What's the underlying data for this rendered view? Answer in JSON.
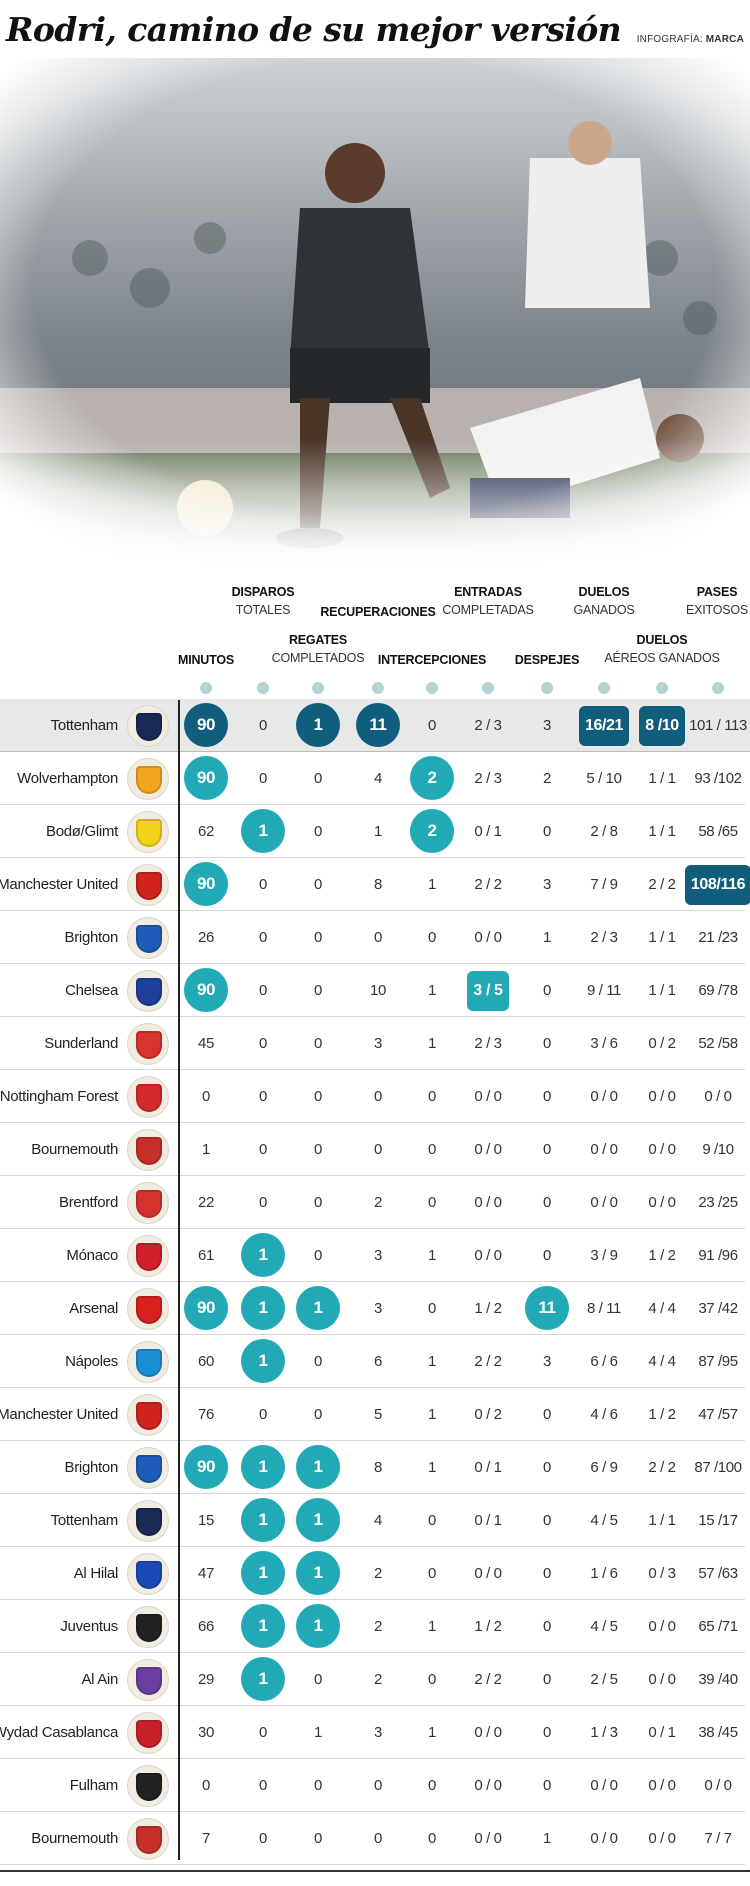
{
  "title": "Rodri, camino de su mejor versión",
  "credit_prefix": "INFOGRAFÍA:",
  "credit_name": "MARCA",
  "colors": {
    "teal": "#21aab6",
    "navy": "#115e7c",
    "dot": "#b5d2d2",
    "highlight_row": "#e8e8e8"
  },
  "headers": [
    {
      "key": "min",
      "bold": "MINUTOS",
      "light": ""
    },
    {
      "key": "shots",
      "bold": "DISPAROS",
      "light": "TOTALES"
    },
    {
      "key": "dribbles",
      "bold": "REGATES",
      "light": "COMPLETADOS"
    },
    {
      "key": "recoveries",
      "bold": "RECUPERACIONES",
      "light": ""
    },
    {
      "key": "interceptions",
      "bold": "INTERCEPCIONES",
      "light": ""
    },
    {
      "key": "tackles",
      "bold": "ENTRADAS",
      "light": "COMPLETADAS"
    },
    {
      "key": "clearances",
      "bold": "DESPEJES",
      "light": ""
    },
    {
      "key": "duels",
      "bold": "DUELOS",
      "light": "GANADOS"
    },
    {
      "key": "aerial",
      "bold": "DUELOS",
      "light": "AÉREOS GANADOS"
    },
    {
      "key": "passes",
      "bold": "PASES",
      "light": "EXITOSOS"
    }
  ],
  "rows": [
    {
      "team": "Tottenham",
      "crest": "tottenham-crest",
      "crest_color": "#1b2a55",
      "highlight": true,
      "cells": [
        {
          "v": "90",
          "hl": "navy"
        },
        {
          "v": "0"
        },
        {
          "v": "1",
          "hl": "navy"
        },
        {
          "v": "11",
          "hl": "navy"
        },
        {
          "v": "0"
        },
        {
          "v": "2 / 3"
        },
        {
          "v": "3"
        },
        {
          "v": "16/21",
          "hl": "navy"
        },
        {
          "v": "8 /10",
          "hl": "navy"
        },
        {
          "v": "101 / 113"
        }
      ]
    },
    {
      "team": "Wolverhampton",
      "crest": "wolverhampton-crest",
      "crest_color": "#f2a51f",
      "cells": [
        {
          "v": "90",
          "hl": "teal"
        },
        {
          "v": "0"
        },
        {
          "v": "0"
        },
        {
          "v": "4"
        },
        {
          "v": "2",
          "hl": "teal"
        },
        {
          "v": "2 / 3"
        },
        {
          "v": "2"
        },
        {
          "v": "5 / 10"
        },
        {
          "v": "1 / 1"
        },
        {
          "v": "93 /102"
        }
      ]
    },
    {
      "team": "Bodø/Glimt",
      "crest": "bodo-glimt-crest",
      "crest_color": "#f2d21a",
      "cells": [
        {
          "v": "62"
        },
        {
          "v": "1",
          "hl": "teal"
        },
        {
          "v": "0"
        },
        {
          "v": "1"
        },
        {
          "v": "2",
          "hl": "teal"
        },
        {
          "v": "0 / 1"
        },
        {
          "v": "0"
        },
        {
          "v": "2 / 8"
        },
        {
          "v": "1 / 1"
        },
        {
          "v": "58 /65"
        }
      ]
    },
    {
      "team": "Manchester United",
      "crest": "manchester-united-crest",
      "crest_color": "#d0231d",
      "cells": [
        {
          "v": "90",
          "hl": "teal"
        },
        {
          "v": "0"
        },
        {
          "v": "0"
        },
        {
          "v": "8"
        },
        {
          "v": "1"
        },
        {
          "v": "2 / 2"
        },
        {
          "v": "3"
        },
        {
          "v": "7 / 9"
        },
        {
          "v": "2 / 2"
        },
        {
          "v": "108/116",
          "hl": "navy"
        }
      ]
    },
    {
      "team": "Brighton",
      "crest": "brighton-crest",
      "crest_color": "#1d5cb8",
      "cells": [
        {
          "v": "26"
        },
        {
          "v": "0"
        },
        {
          "v": "0"
        },
        {
          "v": "0"
        },
        {
          "v": "0"
        },
        {
          "v": "0 / 0"
        },
        {
          "v": "1"
        },
        {
          "v": "2 / 3"
        },
        {
          "v": "1 / 1"
        },
        {
          "v": "21 /23"
        }
      ]
    },
    {
      "team": "Chelsea",
      "crest": "chelsea-crest",
      "crest_color": "#1f3f9a",
      "cells": [
        {
          "v": "90",
          "hl": "teal"
        },
        {
          "v": "0"
        },
        {
          "v": "0"
        },
        {
          "v": "10"
        },
        {
          "v": "1"
        },
        {
          "v": "3 / 5",
          "hl": "teal"
        },
        {
          "v": "0"
        },
        {
          "v": "9 / 11"
        },
        {
          "v": "1 / 1"
        },
        {
          "v": "69 /78"
        }
      ]
    },
    {
      "team": "Sunderland",
      "crest": "sunderland-crest",
      "crest_color": "#d8332c",
      "cells": [
        {
          "v": "45"
        },
        {
          "v": "0"
        },
        {
          "v": "0"
        },
        {
          "v": "3"
        },
        {
          "v": "1"
        },
        {
          "v": "2 / 3"
        },
        {
          "v": "0"
        },
        {
          "v": "3 / 6"
        },
        {
          "v": "0 / 2"
        },
        {
          "v": "52 /58"
        }
      ]
    },
    {
      "team": "Nottingham Forest",
      "crest": "nottingham-forest-crest",
      "crest_color": "#d62a2a",
      "cells": [
        {
          "v": "0"
        },
        {
          "v": "0"
        },
        {
          "v": "0"
        },
        {
          "v": "0"
        },
        {
          "v": "0"
        },
        {
          "v": "0 / 0"
        },
        {
          "v": "0"
        },
        {
          "v": "0 / 0"
        },
        {
          "v": "0 / 0"
        },
        {
          "v": "0 / 0"
        }
      ]
    },
    {
      "team": "Bournemouth",
      "crest": "bournemouth-crest",
      "crest_color": "#c72f2b",
      "cells": [
        {
          "v": "1"
        },
        {
          "v": "0"
        },
        {
          "v": "0"
        },
        {
          "v": "0"
        },
        {
          "v": "0"
        },
        {
          "v": "0 / 0"
        },
        {
          "v": "0"
        },
        {
          "v": "0 / 0"
        },
        {
          "v": "0 / 0"
        },
        {
          "v": "9 /10"
        }
      ]
    },
    {
      "team": "Brentford",
      "crest": "brentford-crest",
      "crest_color": "#d5322c",
      "cells": [
        {
          "v": "22"
        },
        {
          "v": "0"
        },
        {
          "v": "0"
        },
        {
          "v": "2"
        },
        {
          "v": "0"
        },
        {
          "v": "0 / 0"
        },
        {
          "v": "0"
        },
        {
          "v": "0 / 0"
        },
        {
          "v": "0 / 0"
        },
        {
          "v": "23 /25"
        }
      ]
    },
    {
      "team": "Mónaco",
      "crest": "monaco-crest",
      "crest_color": "#d2202a",
      "cells": [
        {
          "v": "61"
        },
        {
          "v": "1",
          "hl": "teal"
        },
        {
          "v": "0"
        },
        {
          "v": "3"
        },
        {
          "v": "1"
        },
        {
          "v": "0 / 0"
        },
        {
          "v": "0"
        },
        {
          "v": "3 / 9"
        },
        {
          "v": "1 / 2"
        },
        {
          "v": "91 /96"
        }
      ]
    },
    {
      "team": "Arsenal",
      "crest": "arsenal-crest",
      "crest_color": "#d8201f",
      "cells": [
        {
          "v": "90",
          "hl": "teal"
        },
        {
          "v": "1",
          "hl": "teal"
        },
        {
          "v": "1",
          "hl": "teal"
        },
        {
          "v": "3"
        },
        {
          "v": "0"
        },
        {
          "v": "1 / 2"
        },
        {
          "v": "11",
          "hl": "teal"
        },
        {
          "v": "8 / 11"
        },
        {
          "v": "4 / 4"
        },
        {
          "v": "37 /42"
        }
      ]
    },
    {
      "team": "Nápoles",
      "crest": "napoles-crest",
      "crest_color": "#1a8fd6",
      "cells": [
        {
          "v": "60"
        },
        {
          "v": "1",
          "hl": "teal"
        },
        {
          "v": "0"
        },
        {
          "v": "6"
        },
        {
          "v": "1"
        },
        {
          "v": "2 / 2"
        },
        {
          "v": "3"
        },
        {
          "v": "6 / 6"
        },
        {
          "v": "4 / 4"
        },
        {
          "v": "87 /95"
        }
      ]
    },
    {
      "team": "Manchester United",
      "crest": "manchester-united-crest",
      "crest_color": "#d0231d",
      "cells": [
        {
          "v": "76"
        },
        {
          "v": "0"
        },
        {
          "v": "0"
        },
        {
          "v": "5"
        },
        {
          "v": "1"
        },
        {
          "v": "0 / 2"
        },
        {
          "v": "0"
        },
        {
          "v": "4 / 6"
        },
        {
          "v": "1 / 2"
        },
        {
          "v": "47 /57"
        }
      ]
    },
    {
      "team": "Brighton",
      "crest": "brighton-crest",
      "crest_color": "#1d5cb8",
      "cells": [
        {
          "v": "90",
          "hl": "teal"
        },
        {
          "v": "1",
          "hl": "teal"
        },
        {
          "v": "1",
          "hl": "teal"
        },
        {
          "v": "8"
        },
        {
          "v": "1"
        },
        {
          "v": "0 / 1"
        },
        {
          "v": "0"
        },
        {
          "v": "6 / 9"
        },
        {
          "v": "2 / 2"
        },
        {
          "v": "87 /100"
        }
      ]
    },
    {
      "team": "Tottenham",
      "crest": "tottenham-crest",
      "crest_color": "#1b2a55",
      "cells": [
        {
          "v": "15"
        },
        {
          "v": "1",
          "hl": "teal"
        },
        {
          "v": "1",
          "hl": "teal"
        },
        {
          "v": "4"
        },
        {
          "v": "0"
        },
        {
          "v": "0 / 1"
        },
        {
          "v": "0"
        },
        {
          "v": "4 / 5"
        },
        {
          "v": "1 / 1"
        },
        {
          "v": "15 /17"
        }
      ]
    },
    {
      "team": "Al Hilal",
      "crest": "al-hilal-crest",
      "crest_color": "#1b49b5",
      "cells": [
        {
          "v": "47"
        },
        {
          "v": "1",
          "hl": "teal"
        },
        {
          "v": "1",
          "hl": "teal"
        },
        {
          "v": "2"
        },
        {
          "v": "0"
        },
        {
          "v": "0 / 0"
        },
        {
          "v": "0"
        },
        {
          "v": "1 / 6"
        },
        {
          "v": "0 / 3"
        },
        {
          "v": "57 /63"
        }
      ]
    },
    {
      "team": "Juventus",
      "crest": "juventus-crest",
      "crest_color": "#222222",
      "cells": [
        {
          "v": "66"
        },
        {
          "v": "1",
          "hl": "teal"
        },
        {
          "v": "1",
          "hl": "teal"
        },
        {
          "v": "2"
        },
        {
          "v": "1"
        },
        {
          "v": "1 / 2"
        },
        {
          "v": "0"
        },
        {
          "v": "4 / 5"
        },
        {
          "v": "0 / 0"
        },
        {
          "v": "65 /71"
        }
      ]
    },
    {
      "team": "Al Ain",
      "crest": "al-ain-crest",
      "crest_color": "#6b3fa0",
      "cells": [
        {
          "v": "29"
        },
        {
          "v": "1",
          "hl": "teal"
        },
        {
          "v": "0"
        },
        {
          "v": "2"
        },
        {
          "v": "0"
        },
        {
          "v": "2 / 2"
        },
        {
          "v": "0"
        },
        {
          "v": "2 / 5"
        },
        {
          "v": "0 / 0"
        },
        {
          "v": "39 /40"
        }
      ]
    },
    {
      "team": "Wydad Casablanca",
      "crest": "wydad-casablanca-crest",
      "crest_color": "#c8202a",
      "cells": [
        {
          "v": "30"
        },
        {
          "v": "0"
        },
        {
          "v": "1"
        },
        {
          "v": "3"
        },
        {
          "v": "1"
        },
        {
          "v": "0 / 0"
        },
        {
          "v": "0"
        },
        {
          "v": "1 / 3"
        },
        {
          "v": "0 / 1"
        },
        {
          "v": "38 /45"
        }
      ]
    },
    {
      "team": "Fulham",
      "crest": "fulham-crest",
      "crest_color": "#222222",
      "cells": [
        {
          "v": "0"
        },
        {
          "v": "0"
        },
        {
          "v": "0"
        },
        {
          "v": "0"
        },
        {
          "v": "0"
        },
        {
          "v": "0 / 0"
        },
        {
          "v": "0"
        },
        {
          "v": "0 / 0"
        },
        {
          "v": "0 / 0"
        },
        {
          "v": "0 / 0"
        }
      ]
    },
    {
      "team": "Bournemouth",
      "crest": "bournemouth-crest",
      "crest_color": "#c72f2b",
      "cells": [
        {
          "v": "7"
        },
        {
          "v": "0"
        },
        {
          "v": "0"
        },
        {
          "v": "0"
        },
        {
          "v": "0"
        },
        {
          "v": "0 / 0"
        },
        {
          "v": "1"
        },
        {
          "v": "0 / 0"
        },
        {
          "v": "0 / 0"
        },
        {
          "v": "7 / 7"
        }
      ]
    }
  ]
}
